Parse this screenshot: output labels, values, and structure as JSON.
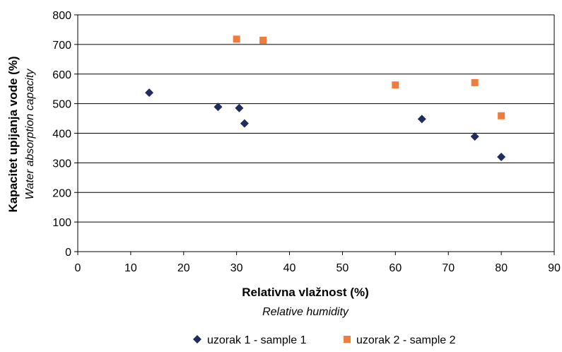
{
  "chart_data": {
    "type": "scatter",
    "xlabel": "Relativna vlažnost (%)",
    "xlabel_sub": "Relative humidity",
    "ylabel": "Kapacitet upijanja vode (%)",
    "ylabel_sub": "Water absorption capacity",
    "xlim": [
      0,
      90
    ],
    "ylim": [
      0,
      800
    ],
    "xticks": [
      0,
      10,
      20,
      30,
      40,
      50,
      60,
      70,
      80,
      90
    ],
    "yticks": [
      0,
      100,
      200,
      300,
      400,
      500,
      600,
      700,
      800
    ],
    "grid": "horizontal",
    "legend": "bottom",
    "series": [
      {
        "name": "uzorak 1 - sample 1",
        "marker": "diamond",
        "color": "#1f2d5c",
        "points": [
          {
            "x": 13.5,
            "y": 537
          },
          {
            "x": 26.5,
            "y": 489
          },
          {
            "x": 30.5,
            "y": 485
          },
          {
            "x": 31.5,
            "y": 433
          },
          {
            "x": 65,
            "y": 448
          },
          {
            "x": 75,
            "y": 389
          },
          {
            "x": 80,
            "y": 320
          }
        ]
      },
      {
        "name": "uzorak 2 - sample 2",
        "marker": "square",
        "color": "#f07c3c",
        "points": [
          {
            "x": 30,
            "y": 718
          },
          {
            "x": 35,
            "y": 714
          },
          {
            "x": 60,
            "y": 563
          },
          {
            "x": 75,
            "y": 571
          },
          {
            "x": 80,
            "y": 459
          }
        ]
      }
    ]
  }
}
